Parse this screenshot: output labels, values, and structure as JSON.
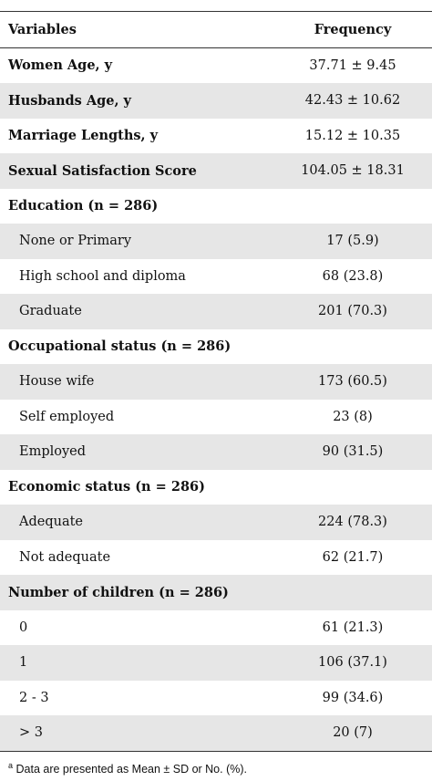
{
  "table": {
    "header": [
      "Variables",
      "Frequency"
    ],
    "rows": [
      {
        "label": "Women Age, y",
        "value": "37.71 ± 9.45"
      },
      {
        "label": "Husbands Age, y",
        "value": "42.43 ± 10.62"
      },
      {
        "label": "Marriage Lengths, y",
        "value": "15.12 ± 10.35"
      },
      {
        "label": "Sexual Satisfaction Score",
        "value": "104.05 ± 18.31"
      }
    ],
    "groups": [
      {
        "title": "Education (n = 286)",
        "items": [
          {
            "label": "None or Primary",
            "value": "17 (5.9)"
          },
          {
            "label": "High school and diploma",
            "value": "68 (23.8)"
          },
          {
            "label": "Graduate",
            "value": "201 (70.3)"
          }
        ]
      },
      {
        "title": "Occupational status (n = 286)",
        "items": [
          {
            "label": "House wife",
            "value": "173 (60.5)"
          },
          {
            "label": "Self employed",
            "value": "23 (8)"
          },
          {
            "label": "Employed",
            "value": "90 (31.5)"
          }
        ]
      },
      {
        "title": "Economic status (n = 286)",
        "items": [
          {
            "label": "Adequate",
            "value": "224 (78.3)"
          },
          {
            "label": "Not adequate",
            "value": "62 (21.7)"
          }
        ]
      },
      {
        "title": "Number of children (n = 286)",
        "items": [
          {
            "label": "0",
            "value": "61 (21.3)"
          },
          {
            "label": "1",
            "value": "106 (37.1)"
          },
          {
            "label": "2 - 3",
            "value": "99 (34.6)"
          },
          {
            "label": "> 3",
            "value": "20 (7)"
          }
        ]
      }
    ]
  },
  "footnote": {
    "marker": "a",
    "text": "Data are presented as Mean ± SD or No. (%)."
  }
}
